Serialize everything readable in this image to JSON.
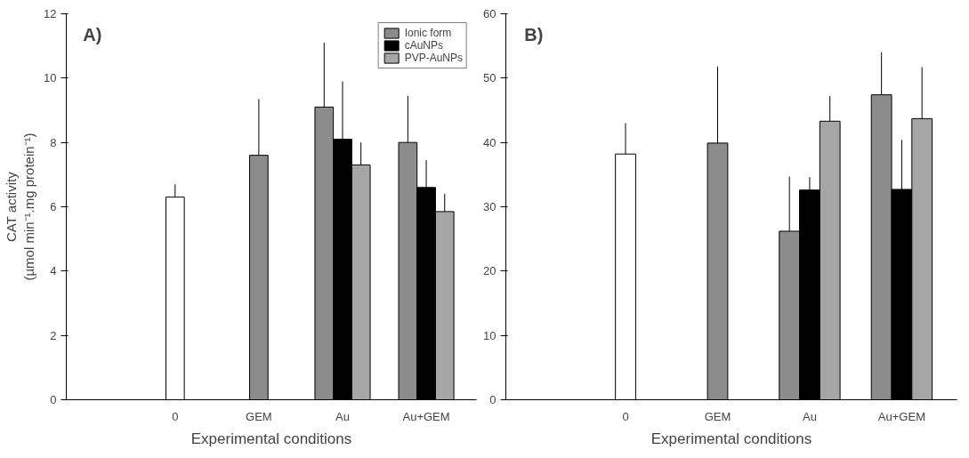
{
  "chart_data": [
    {
      "type": "bar",
      "annotations": [
        "A)"
      ],
      "xlabel": "Experimental conditions",
      "ylabel": "CAT activity\n(µmol min⁻¹.mg protein⁻¹)",
      "categories": [
        "0",
        "GEM",
        "Au",
        "Au+GEM"
      ],
      "ylim": [
        0,
        12
      ],
      "yticks": [
        0,
        2,
        4,
        6,
        8,
        10,
        12
      ],
      "grid": false,
      "legend": "top right",
      "series": [
        {
          "color": "#ffffff",
          "values": [
            6.3,
            null,
            null,
            null
          ],
          "errors": [
            [
              6.3,
              6.7
            ],
            null,
            null,
            null
          ]
        },
        {
          "name": "Ionic form",
          "color": "#8c8c8c",
          "values": [
            null,
            7.6,
            9.1,
            8.0
          ],
          "errors": [
            null,
            [
              7.6,
              9.35
            ],
            [
              9.1,
              11.1
            ],
            [
              8.0,
              9.45
            ]
          ]
        },
        {
          "name": "cAuNPs",
          "color": "#000000",
          "values": [
            null,
            null,
            8.1,
            6.6
          ],
          "errors": [
            null,
            null,
            [
              8.1,
              9.9
            ],
            [
              6.6,
              7.45
            ]
          ]
        },
        {
          "name": "PVP-AuNPs",
          "color": "#a6a6a6",
          "values": [
            null,
            null,
            7.3,
            5.85
          ],
          "errors": [
            null,
            null,
            [
              7.3,
              8.0
            ],
            [
              5.85,
              6.4
            ]
          ]
        }
      ]
    },
    {
      "type": "bar",
      "annotations": [
        "B)"
      ],
      "xlabel": "Experimental conditions",
      "categories": [
        "0",
        "GEM",
        "Au",
        "Au+GEM"
      ],
      "ylim": [
        0,
        60
      ],
      "yticks": [
        0,
        10,
        20,
        30,
        40,
        50,
        60
      ],
      "grid": false,
      "series": [
        {
          "color": "#ffffff",
          "values": [
            38.2,
            null,
            null,
            null
          ],
          "errors": [
            [
              38.2,
              43
            ],
            null,
            null,
            null
          ]
        },
        {
          "color": "#8c8c8c",
          "values": [
            null,
            39.9,
            26.2,
            47.4
          ],
          "errors": [
            null,
            [
              39.9,
              51.8
            ],
            [
              26.2,
              34.7
            ],
            [
              47.4,
              54.0
            ]
          ]
        },
        {
          "color": "#000000",
          "values": [
            null,
            null,
            32.6,
            32.7
          ],
          "errors": [
            null,
            null,
            [
              32.6,
              34.6
            ],
            [
              32.7,
              40.4
            ]
          ]
        },
        {
          "color": "#a6a6a6",
          "values": [
            null,
            null,
            43.3,
            43.7
          ],
          "errors": [
            null,
            null,
            [
              43.3,
              47.2
            ],
            [
              43.7,
              51.7
            ]
          ]
        }
      ]
    }
  ]
}
